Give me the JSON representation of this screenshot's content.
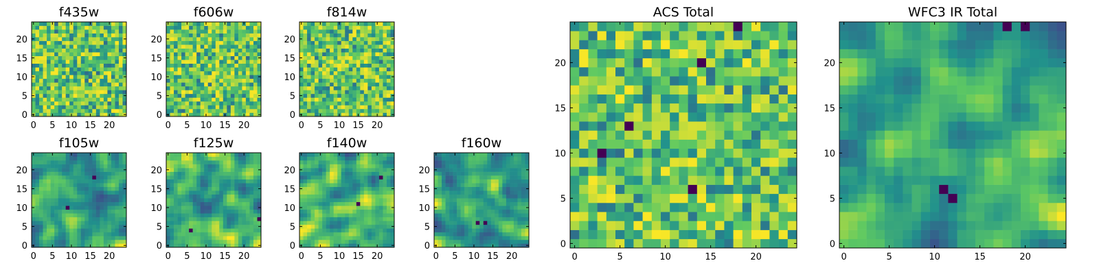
{
  "chart_data": [
    {
      "type": "heatmap",
      "title": "f435w",
      "xticks": [
        "0",
        "5",
        "10",
        "15",
        "20"
      ],
      "yticks": [
        "0",
        "5",
        "10",
        "15",
        "20"
      ],
      "grid_size": [
        25,
        25
      ],
      "grid": false,
      "colormap": "viridis",
      "texture": "fine-noise",
      "features": []
    },
    {
      "type": "heatmap",
      "title": "f606w",
      "xticks": [
        "0",
        "5",
        "10",
        "15",
        "20"
      ],
      "yticks": [
        "0",
        "5",
        "10",
        "15",
        "20"
      ],
      "grid_size": [
        25,
        25
      ],
      "grid": false,
      "colormap": "viridis",
      "texture": "fine-noise",
      "features": []
    },
    {
      "type": "heatmap",
      "title": "f814w",
      "xticks": [
        "0",
        "5",
        "10",
        "15",
        "20"
      ],
      "yticks": [
        "0",
        "5",
        "10",
        "15",
        "20"
      ],
      "grid_size": [
        25,
        25
      ],
      "grid": false,
      "colormap": "viridis",
      "texture": "fine-noise",
      "features": []
    },
    {
      "type": "heatmap",
      "title": "f105w",
      "xticks": [
        "0",
        "5",
        "10",
        "15",
        "20"
      ],
      "yticks": [
        "0",
        "5",
        "10",
        "15",
        "20"
      ],
      "grid_size": [
        25,
        25
      ],
      "grid": false,
      "colormap": "viridis",
      "texture": "smooth-noise",
      "features": [
        [
          9,
          10
        ],
        [
          16,
          18
        ]
      ]
    },
    {
      "type": "heatmap",
      "title": "f125w",
      "xticks": [
        "0",
        "5",
        "10",
        "15",
        "20"
      ],
      "yticks": [
        "0",
        "5",
        "10",
        "15",
        "20"
      ],
      "grid_size": [
        25,
        25
      ],
      "grid": false,
      "colormap": "viridis",
      "texture": "smooth-noise",
      "features": [
        [
          6,
          4
        ],
        [
          24,
          7
        ]
      ]
    },
    {
      "type": "heatmap",
      "title": "f140w",
      "xticks": [
        "0",
        "5",
        "10",
        "15",
        "20"
      ],
      "yticks": [
        "0",
        "5",
        "10",
        "15",
        "20"
      ],
      "grid_size": [
        25,
        25
      ],
      "grid": false,
      "colormap": "viridis",
      "texture": "smooth-noise",
      "features": [
        [
          15,
          11
        ],
        [
          21,
          18
        ]
      ]
    },
    {
      "type": "heatmap",
      "title": "f160w",
      "xticks": [
        "0",
        "5",
        "10",
        "15",
        "20"
      ],
      "yticks": [
        "0",
        "5",
        "10",
        "15",
        "20"
      ],
      "grid_size": [
        25,
        25
      ],
      "grid": false,
      "colormap": "viridis",
      "texture": "smooth-noise",
      "features": [
        [
          11,
          6
        ],
        [
          13,
          6
        ]
      ]
    },
    {
      "type": "heatmap",
      "title": "ACS Total",
      "xticks": [
        "0",
        "5",
        "10",
        "15",
        "20"
      ],
      "yticks": [
        "0",
        "5",
        "10",
        "15",
        "20"
      ],
      "grid_size": [
        25,
        25
      ],
      "grid": false,
      "colormap": "viridis",
      "texture": "fine-noise",
      "features": [
        [
          3,
          10
        ],
        [
          6,
          13
        ],
        [
          13,
          6
        ],
        [
          14,
          20
        ],
        [
          18,
          24
        ]
      ]
    },
    {
      "type": "heatmap",
      "title": "WFC3 IR Total",
      "xticks": [
        "0",
        "5",
        "10",
        "15",
        "20"
      ],
      "yticks": [
        "0",
        "5",
        "10",
        "15",
        "20"
      ],
      "grid_size": [
        25,
        25
      ],
      "grid": false,
      "colormap": "viridis",
      "texture": "smooth-noise",
      "features": [
        [
          11,
          6
        ],
        [
          12,
          5
        ],
        [
          18,
          24
        ],
        [
          20,
          24
        ]
      ]
    }
  ]
}
